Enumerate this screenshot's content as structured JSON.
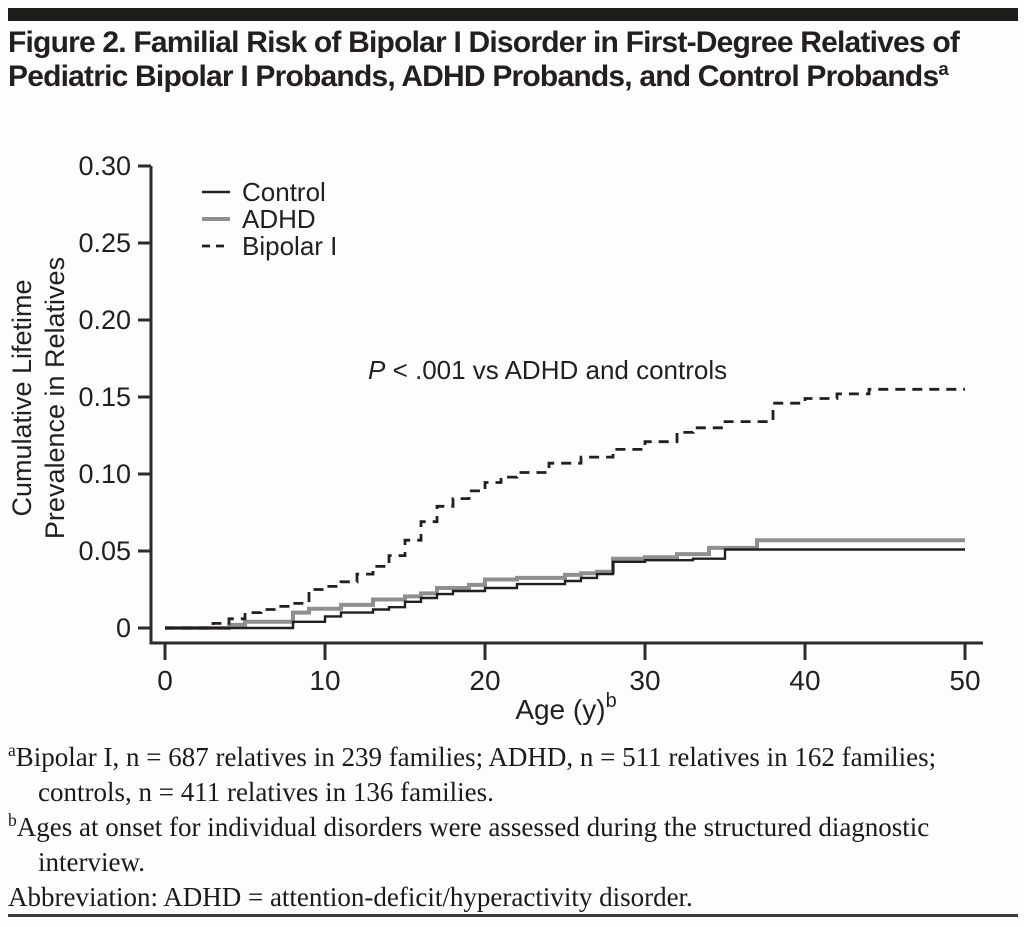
{
  "page": {
    "background": "#fdfdfd",
    "rule_color": "#1d1d1b"
  },
  "figure": {
    "title": "Figure 2. Familial Risk of Bipolar I Disorder in First-Degree Relatives of Pediatric Bipolar I Probands, ADHD Probands, and Control Probands",
    "title_superscript": "a"
  },
  "chart_data": {
    "type": "line",
    "line_style": "step-after",
    "title": "",
    "xlabel": "Age (y)",
    "xlabel_superscript": "b",
    "ylabel": "Cumulative Lifetime Prevalence in Relatives",
    "ylabel_lines": [
      "Cumulative Lifetime",
      "Prevalence in Relatives"
    ],
    "xlim": [
      0,
      50
    ],
    "ylim": [
      0,
      0.3
    ],
    "xticks": [
      0,
      10,
      20,
      30,
      40,
      50
    ],
    "yticks": [
      {
        "v": 0,
        "label": "0"
      },
      {
        "v": 0.05,
        "label": "0.05"
      },
      {
        "v": 0.1,
        "label": "0.10"
      },
      {
        "v": 0.15,
        "label": "0.15"
      },
      {
        "v": 0.2,
        "label": "0.20"
      },
      {
        "v": 0.25,
        "label": "0.25"
      },
      {
        "v": 0.3,
        "label": "0.30"
      }
    ],
    "grid": false,
    "legend_position": "top-left-inside",
    "legend": [
      {
        "name": "Control",
        "color": "#231f20",
        "dash": "solid",
        "width": 2.4
      },
      {
        "name": "ADHD",
        "color": "#8f8f8f",
        "dash": "solid",
        "width": 4
      },
      {
        "name": "Bipolar I",
        "color": "#231f20",
        "dash": "dashed",
        "width": 2.8
      }
    ],
    "annotation": {
      "italic": "P",
      "rest": " < .001 vs ADHD and controls"
    },
    "series": [
      {
        "name": "ADHD",
        "color": "#8f8f8f",
        "dash": "solid",
        "width": 4,
        "points": [
          [
            0,
            0
          ],
          [
            4,
            0.002
          ],
          [
            5,
            0.004
          ],
          [
            8,
            0.01
          ],
          [
            9,
            0.0125
          ],
          [
            11,
            0.015
          ],
          [
            13,
            0.0185
          ],
          [
            15,
            0.0205
          ],
          [
            16,
            0.0225
          ],
          [
            17,
            0.026
          ],
          [
            19,
            0.028
          ],
          [
            20,
            0.0315
          ],
          [
            22,
            0.0325
          ],
          [
            25,
            0.0345
          ],
          [
            26,
            0.0355
          ],
          [
            27,
            0.0365
          ],
          [
            28,
            0.045
          ],
          [
            30,
            0.046
          ],
          [
            32,
            0.048
          ],
          [
            34,
            0.052
          ],
          [
            37,
            0.057
          ]
        ]
      },
      {
        "name": "Control",
        "color": "#231f20",
        "dash": "solid",
        "width": 2.4,
        "points": [
          [
            0,
            0
          ],
          [
            8,
            0.004
          ],
          [
            10,
            0.0075
          ],
          [
            11,
            0.01
          ],
          [
            13,
            0.012
          ],
          [
            14,
            0.0135
          ],
          [
            15,
            0.017
          ],
          [
            16,
            0.0195
          ],
          [
            17,
            0.022
          ],
          [
            18,
            0.024
          ],
          [
            20,
            0.026
          ],
          [
            22,
            0.0285
          ],
          [
            25,
            0.0305
          ],
          [
            26,
            0.0325
          ],
          [
            27,
            0.035
          ],
          [
            28,
            0.043
          ],
          [
            30,
            0.044
          ],
          [
            33,
            0.045
          ],
          [
            35,
            0.051
          ]
        ]
      },
      {
        "name": "Bipolar I",
        "color": "#231f20",
        "dash": "dashed",
        "width": 2.8,
        "points": [
          [
            0,
            0
          ],
          [
            3,
            0.003
          ],
          [
            4,
            0.006
          ],
          [
            5,
            0.01
          ],
          [
            6,
            0.012
          ],
          [
            7,
            0.014
          ],
          [
            8,
            0.016
          ],
          [
            9,
            0.025
          ],
          [
            10,
            0.027
          ],
          [
            11,
            0.03
          ],
          [
            12,
            0.035
          ],
          [
            13,
            0.04
          ],
          [
            14,
            0.047
          ],
          [
            15,
            0.057
          ],
          [
            16,
            0.069
          ],
          [
            17,
            0.079
          ],
          [
            18,
            0.084
          ],
          [
            19,
            0.089
          ],
          [
            20,
            0.0945
          ],
          [
            21,
            0.098
          ],
          [
            22,
            0.101
          ],
          [
            24,
            0.107
          ],
          [
            26,
            0.111
          ],
          [
            28,
            0.116
          ],
          [
            30,
            0.121
          ],
          [
            32,
            0.127
          ],
          [
            33,
            0.13
          ],
          [
            35,
            0.134
          ],
          [
            38,
            0.146
          ],
          [
            40,
            0.149
          ],
          [
            42,
            0.152
          ],
          [
            44,
            0.155
          ]
        ]
      }
    ]
  },
  "footnotes": [
    {
      "marker": "a",
      "text": "Bipolar I, n = 687 relatives in 239 families; ADHD, n = 511 relatives in 162 families; controls, n = 411 relatives in 136 families."
    },
    {
      "marker": "b",
      "text": "Ages at onset for individual disorders were assessed during the structured diagnostic interview."
    },
    {
      "marker": "",
      "text": "Abbreviation: ADHD = attention-deficit/hyperactivity disorder."
    }
  ]
}
